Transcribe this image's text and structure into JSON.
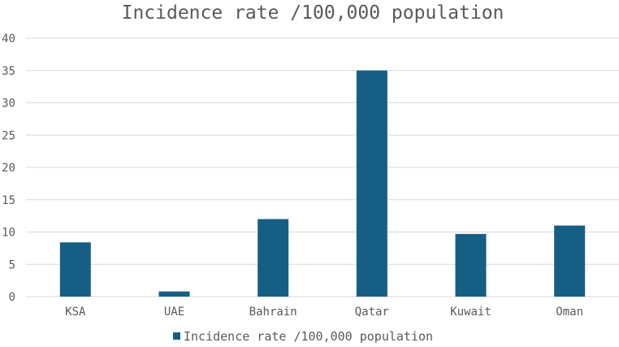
{
  "chart_data": {
    "type": "bar",
    "title": "Incidence rate /100,000 population",
    "categories": [
      "KSA",
      "UAE",
      "Bahrain",
      "Qatar",
      "Kuwait",
      "Oman"
    ],
    "series": [
      {
        "name": "Incidence rate /100,000 population",
        "values": [
          8.4,
          0.8,
          12.0,
          35.0,
          9.7,
          11.0
        ],
        "color": "#165e83"
      }
    ],
    "ylim": [
      0,
      40
    ],
    "yticks": [
      "0",
      "5",
      "10",
      "15",
      "20",
      "25",
      "30",
      "35",
      "40"
    ],
    "grid": true,
    "legend": "bottom"
  }
}
